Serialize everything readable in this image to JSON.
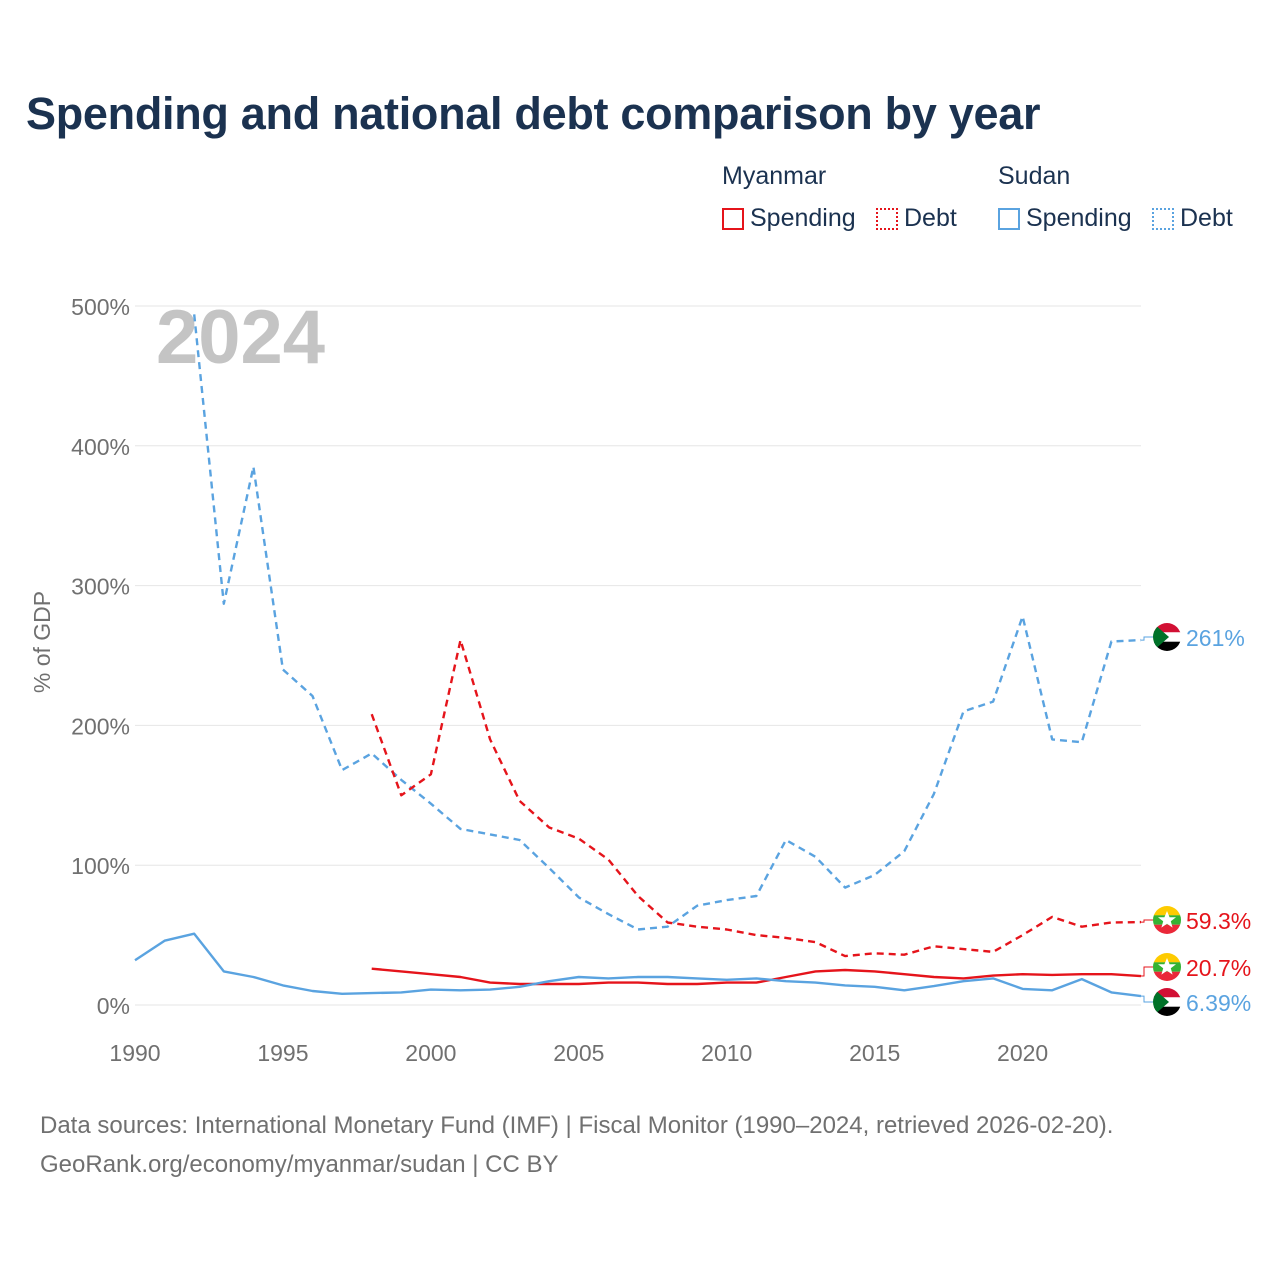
{
  "title": "Spending and national debt comparison by year",
  "legend": {
    "groups": [
      {
        "country": "Myanmar",
        "items": [
          {
            "label": "Spending",
            "style": "solid"
          },
          {
            "label": "Debt",
            "style": "dotted"
          }
        ],
        "color": "#e5141b"
      },
      {
        "country": "Sudan",
        "items": [
          {
            "label": "Spending",
            "style": "solid"
          },
          {
            "label": "Debt",
            "style": "dotted"
          }
        ],
        "color": "#5aa3e0"
      }
    ]
  },
  "footer": {
    "line1": "Data sources: International Monetary Fund (IMF) | Fiscal Monitor (1990–2024, retrieved 2026-02-20).",
    "line2": "GeoRank.org/economy/myanmar/sudan | CC BY"
  },
  "chart_data": {
    "type": "line",
    "title": "Spending and national debt comparison by year",
    "year_watermark": "2024",
    "xlabel": "",
    "ylabel": "% of GDP",
    "xlim": [
      1990,
      2024
    ],
    "ylim": [
      0,
      500
    ],
    "x_ticks": [
      1990,
      1995,
      2000,
      2005,
      2010,
      2015,
      2020
    ],
    "y_ticks": [
      0,
      100,
      200,
      300,
      400,
      500
    ],
    "y_tick_labels": [
      "0%",
      "100%",
      "200%",
      "300%",
      "400%",
      "500%"
    ],
    "grid": true,
    "legend_position": "top-right",
    "series": [
      {
        "name": "Sudan Debt",
        "country": "Sudan",
        "metric": "Debt",
        "color": "#5aa3e0",
        "dash": "dashed",
        "x": [
          1990,
          1991,
          1992,
          1993,
          1994,
          1995,
          1996,
          1997,
          1998,
          1999,
          2000,
          2001,
          2002,
          2003,
          2004,
          2005,
          2006,
          2007,
          2008,
          2009,
          2010,
          2011,
          2012,
          2013,
          2014,
          2015,
          2016,
          2017,
          2018,
          2019,
          2020,
          2021,
          2022,
          2023,
          2024
        ],
        "values": [
          null,
          null,
          494,
          287,
          385,
          240,
          221,
          168,
          180,
          161,
          144,
          126,
          122,
          118,
          98,
          77,
          65,
          54,
          56,
          71,
          75,
          78,
          118,
          106,
          84,
          93,
          110,
          151,
          210,
          217,
          278,
          190,
          188,
          260,
          261
        ],
        "end_label": "261%"
      },
      {
        "name": "Myanmar Debt",
        "country": "Myanmar",
        "metric": "Debt",
        "color": "#e5141b",
        "dash": "dashed",
        "x": [
          1998,
          1999,
          2000,
          2001,
          2002,
          2003,
          2004,
          2005,
          2006,
          2007,
          2008,
          2009,
          2010,
          2011,
          2012,
          2013,
          2014,
          2015,
          2016,
          2017,
          2018,
          2019,
          2020,
          2021,
          2022,
          2023,
          2024
        ],
        "values": [
          208,
          150,
          165,
          261,
          190,
          146,
          127,
          119,
          104,
          78,
          59,
          56,
          54,
          50,
          48,
          45,
          35,
          37,
          36,
          42,
          40,
          38,
          50,
          63,
          56,
          59,
          59.3
        ],
        "end_label": "59.3%"
      },
      {
        "name": "Myanmar Spending",
        "country": "Myanmar",
        "metric": "Spending",
        "color": "#e5141b",
        "dash": "solid",
        "x": [
          1998,
          1999,
          2000,
          2001,
          2002,
          2003,
          2004,
          2005,
          2006,
          2007,
          2008,
          2009,
          2010,
          2011,
          2012,
          2013,
          2014,
          2015,
          2016,
          2017,
          2018,
          2019,
          2020,
          2021,
          2022,
          2023,
          2024
        ],
        "values": [
          26,
          24,
          22,
          20,
          16,
          15,
          15,
          15,
          16,
          16,
          15,
          15,
          16,
          16,
          20,
          24,
          25,
          24,
          22,
          20,
          19,
          21,
          22,
          21.5,
          22,
          22,
          20.7
        ],
        "end_label": "20.7%"
      },
      {
        "name": "Sudan Spending",
        "country": "Sudan",
        "metric": "Spending",
        "color": "#5aa3e0",
        "dash": "solid",
        "x": [
          1990,
          1991,
          1992,
          1993,
          1994,
          1995,
          1996,
          1997,
          1998,
          1999,
          2000,
          2001,
          2002,
          2003,
          2004,
          2005,
          2006,
          2007,
          2008,
          2009,
          2010,
          2011,
          2012,
          2013,
          2014,
          2015,
          2016,
          2017,
          2018,
          2019,
          2020,
          2021,
          2022,
          2023,
          2024
        ],
        "values": [
          32,
          46,
          51,
          24,
          20,
          14,
          10,
          8,
          8.5,
          9,
          11,
          10.5,
          11,
          13,
          17,
          20,
          19,
          20,
          20,
          19,
          18,
          19,
          17,
          16,
          14,
          13,
          10.5,
          13.5,
          17,
          19,
          11.5,
          10.5,
          18.5,
          9,
          6.39
        ],
        "end_label": "6.39%"
      }
    ]
  }
}
